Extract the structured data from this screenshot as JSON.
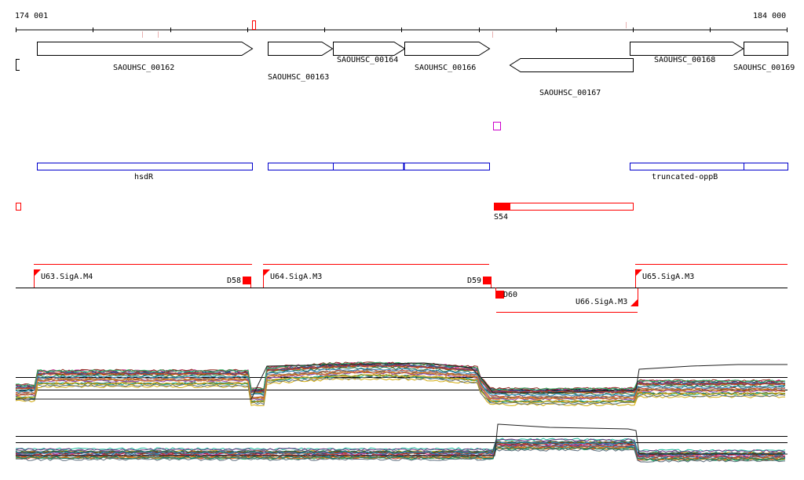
{
  "ruler": {
    "start_label": "174 001",
    "end_label": "184 000"
  },
  "genes": [
    {
      "label": "SAOUHSC_00162",
      "strand": "+"
    },
    {
      "label": "SAOUHSC_00163",
      "strand": "+"
    },
    {
      "label": "SAOUHSC_00164",
      "strand": "+"
    },
    {
      "label": "SAOUHSC_00166",
      "strand": "+"
    },
    {
      "label": "SAOUHSC_00167",
      "strand": "-"
    },
    {
      "label": "SAOUHSC_00168",
      "strand": "+"
    },
    {
      "label": "SAOUHSC_00169",
      "strand": "+"
    }
  ],
  "domains": [
    {
      "label": "hsdR"
    },
    {
      "label": "truncated-oppB"
    }
  ],
  "srna": {
    "label": "S54"
  },
  "promoters": [
    {
      "label": "U63.SigA.M4"
    },
    {
      "label": "U64.SigA.M3"
    },
    {
      "label": "U65.SigA.M3"
    },
    {
      "label": "U66.SigA.M3"
    }
  ],
  "terminators": [
    {
      "label": "D58"
    },
    {
      "label": "D59"
    },
    {
      "label": "D60"
    }
  ],
  "colors": {
    "gene_outline": "#000000",
    "domain_outline": "#0000cc",
    "feature_red": "#ff0000",
    "marker_magenta": "#cc00cc",
    "tick_pink": "#e8b0b0"
  }
}
